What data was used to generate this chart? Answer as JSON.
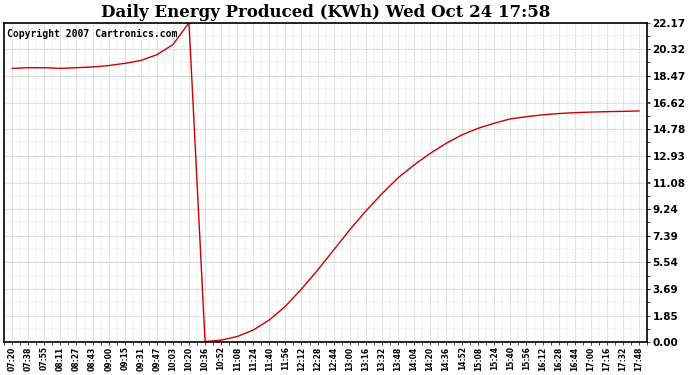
{
  "title": "Daily Energy Produced (KWh) Wed Oct 24 17:58",
  "copyright_text": "Copyright 2007 Cartronics.com",
  "line_color": "#cc0000",
  "background_color": "#ffffff",
  "plot_bg_color": "#ffffff",
  "grid_color": "#aaaaaa",
  "yticks": [
    0.0,
    1.85,
    3.69,
    5.54,
    7.39,
    9.24,
    11.08,
    12.93,
    14.78,
    16.62,
    18.47,
    20.32,
    22.17
  ],
  "xtick_labels": [
    "07:20",
    "07:38",
    "07:55",
    "08:11",
    "08:27",
    "08:43",
    "09:00",
    "09:15",
    "09:31",
    "09:47",
    "10:03",
    "10:20",
    "10:36",
    "10:52",
    "11:08",
    "11:24",
    "11:40",
    "11:56",
    "12:12",
    "12:28",
    "12:44",
    "13:00",
    "13:16",
    "13:32",
    "13:48",
    "14:04",
    "14:20",
    "14:36",
    "14:52",
    "15:08",
    "15:24",
    "15:40",
    "15:56",
    "16:12",
    "16:28",
    "16:44",
    "17:00",
    "17:16",
    "17:32",
    "17:48"
  ],
  "ymax": 22.17,
  "ymin": 0.0,
  "title_fontsize": 12,
  "copyright_fontsize": 7,
  "phase1_y": [
    19.0,
    19.05,
    19.05,
    19.0,
    19.05,
    19.1,
    19.2,
    19.35,
    19.55,
    19.95,
    20.65,
    22.17
  ],
  "phase2_drop": 0.05,
  "phase3_y": [
    0.05,
    0.15,
    0.4,
    0.85,
    1.55,
    2.5,
    3.7,
    5.0,
    6.4,
    7.8,
    9.1,
    10.3,
    11.4,
    12.3,
    13.1,
    13.8,
    14.4,
    14.85,
    15.2,
    15.5,
    15.65,
    15.78,
    15.87,
    15.93,
    15.97,
    16.0,
    16.02,
    16.05
  ]
}
